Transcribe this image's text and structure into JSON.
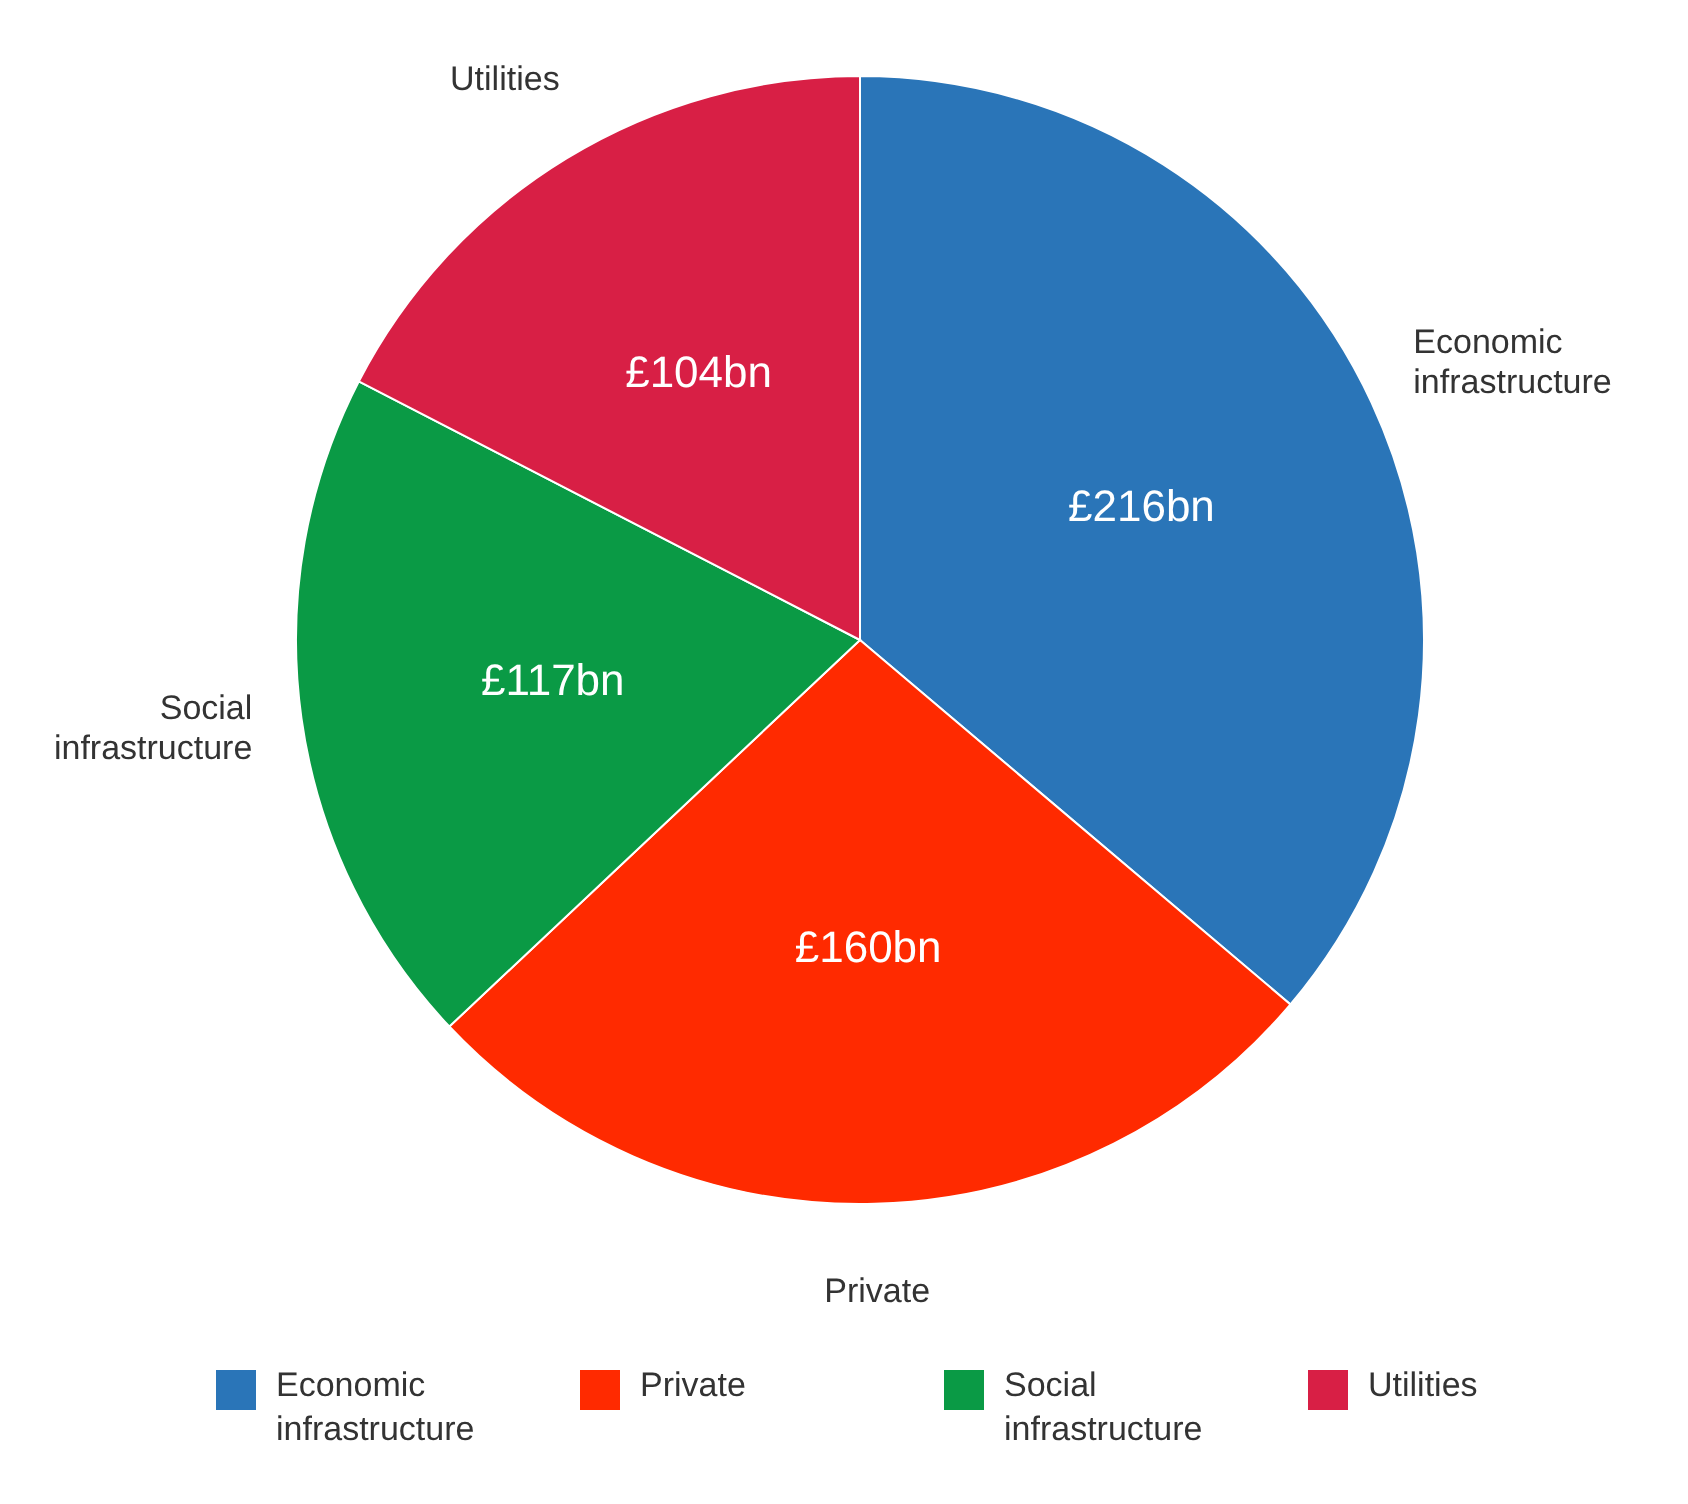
{
  "chart_data": {
    "type": "pie",
    "categories": [
      "Economic infrastructure",
      "Private",
      "Social infrastructure",
      "Utilities"
    ],
    "values": [
      216,
      160,
      117,
      104
    ],
    "colors": [
      "#2a75b8",
      "#ff2a00",
      "#0a9a45",
      "#d81f45"
    ],
    "value_labels": [
      "£216bn",
      "£160bn",
      "£117bn",
      "£104bn"
    ],
    "legend": "bottom"
  }
}
